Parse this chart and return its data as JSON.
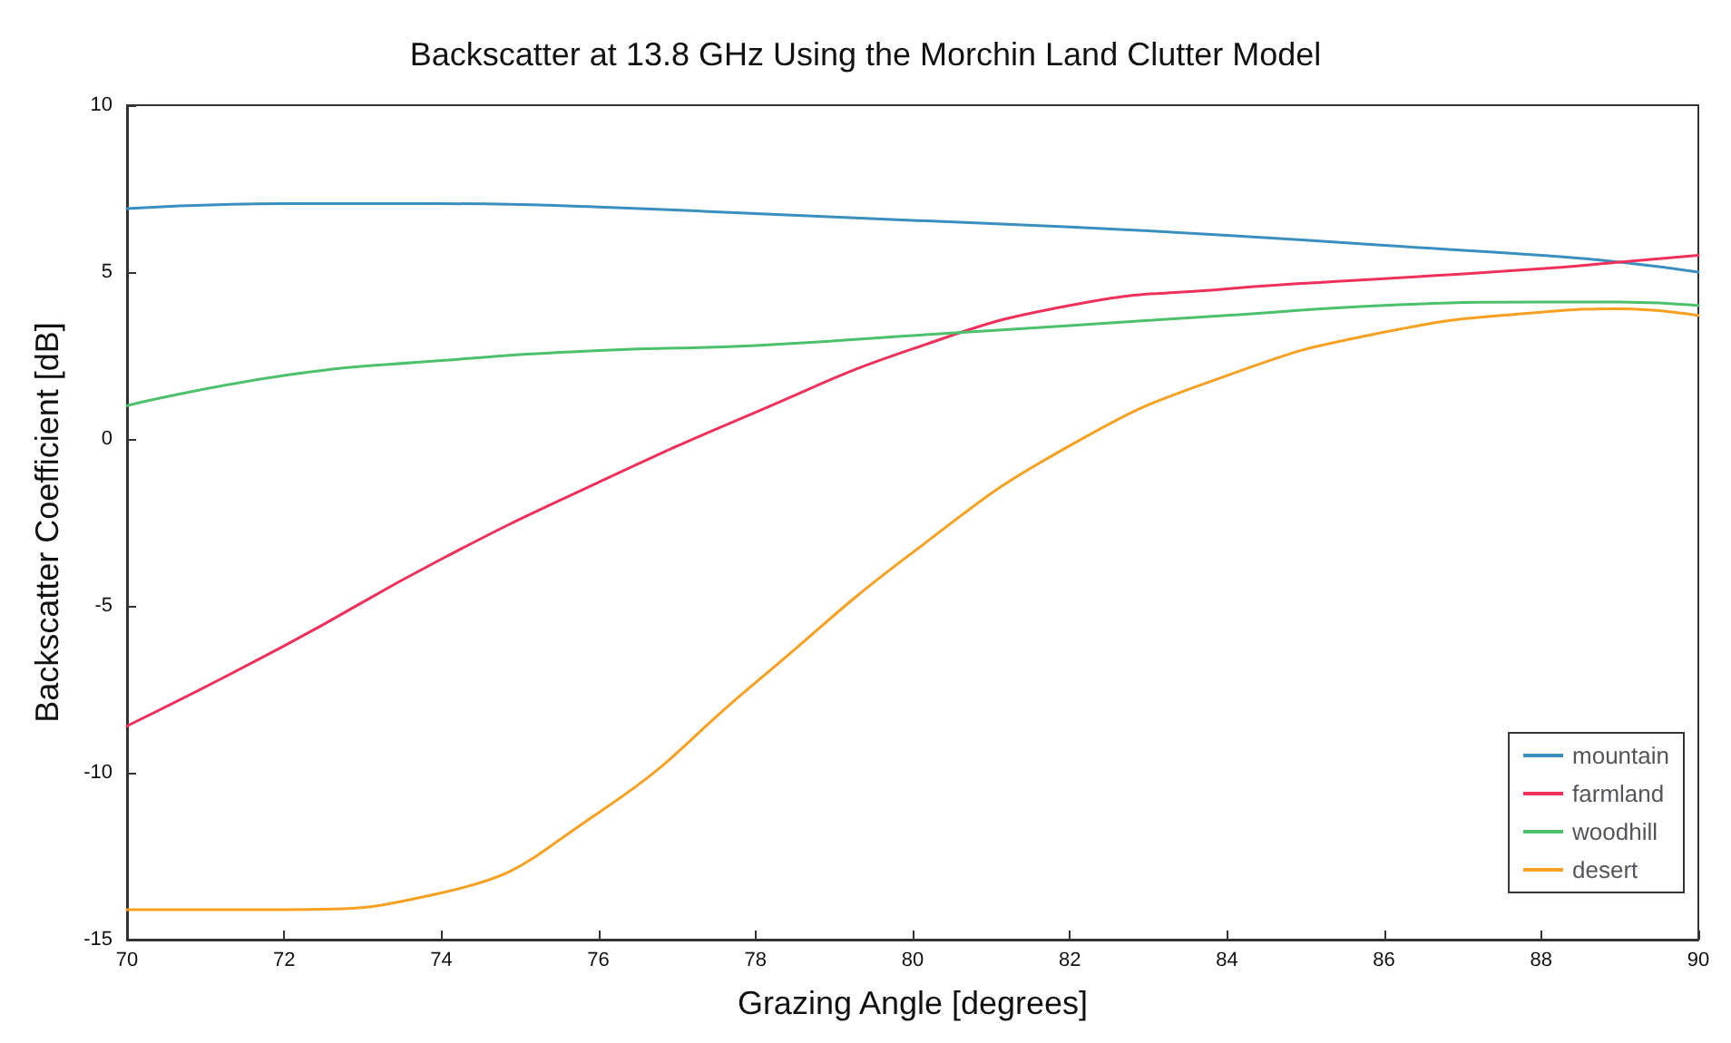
{
  "chart_data": {
    "type": "line",
    "title": "Backscatter at 13.8 GHz Using the Morchin Land Clutter Model",
    "xlabel": "Grazing Angle [degrees]",
    "ylabel": "Backscatter Coefficient [dB]",
    "x": [
      70,
      72,
      74,
      76,
      78,
      80,
      82,
      84,
      86,
      88,
      89,
      90
    ],
    "series": [
      {
        "name": "mountain",
        "color": "#3a8fc0",
        "values": [
          6.9,
          7.05,
          7.05,
          6.95,
          6.75,
          6.55,
          6.35,
          6.1,
          5.8,
          5.5,
          5.3,
          5.0
        ]
      },
      {
        "name": "farmland",
        "color": "#f0305a",
        "values": [
          -8.6,
          -6.2,
          -3.6,
          -1.3,
          0.8,
          2.7,
          4.0,
          4.5,
          4.8,
          5.1,
          5.3,
          5.5
        ]
      },
      {
        "name": "woodhill",
        "color": "#4cc06a",
        "values": [
          1.0,
          1.9,
          2.35,
          2.65,
          2.8,
          3.1,
          3.4,
          3.7,
          4.0,
          4.1,
          4.1,
          4.0
        ]
      },
      {
        "name": "desert",
        "color": "#f8a020",
        "values": [
          -14.1,
          -14.1,
          -13.6,
          -11.2,
          -7.3,
          -3.4,
          -0.2,
          1.9,
          3.2,
          3.8,
          3.9,
          3.7
        ]
      }
    ],
    "xlim": [
      70,
      90
    ],
    "xticks": [
      70,
      72,
      74,
      76,
      78,
      80,
      82,
      84,
      86,
      88,
      90
    ],
    "ylim": [
      -15,
      10
    ],
    "yticks": [
      -15,
      -10,
      -5,
      0,
      5,
      10
    ],
    "grid": false,
    "legend": "bottom right",
    "marker": "none",
    "line_style": "solid"
  }
}
